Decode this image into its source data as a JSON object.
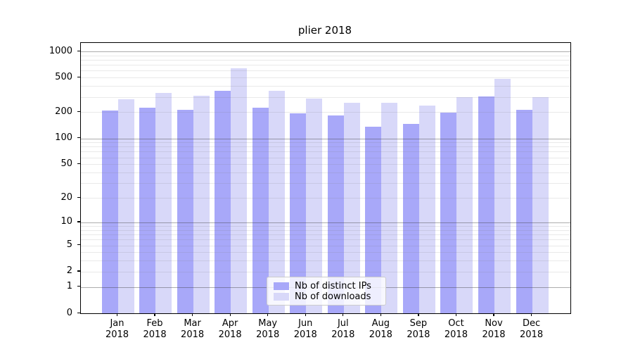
{
  "chart_data": {
    "type": "bar",
    "title": "plier 2018",
    "year_label": "2018",
    "categories": [
      "Jan",
      "Feb",
      "Mar",
      "Apr",
      "May",
      "Jun",
      "Jul",
      "Aug",
      "Sep",
      "Oct",
      "Nov",
      "Dec"
    ],
    "series": [
      {
        "name": "Nb of distinct IPs",
        "color": "#a8a8f9",
        "values": [
          208,
          224,
          215,
          352,
          227,
          193,
          183,
          135,
          148,
          197,
          306,
          214
        ]
      },
      {
        "name": "Nb of downloads",
        "color": "#d8d8f9",
        "values": [
          284,
          331,
          311,
          642,
          356,
          289,
          255,
          258,
          238,
          297,
          480,
          296
        ]
      }
    ],
    "y_axis": {
      "scale": "log1p",
      "tick_labels": [
        "0",
        "1",
        "2",
        "5",
        "10",
        "20",
        "50",
        "100",
        "200",
        "500",
        "1000"
      ],
      "top_value": 1000
    },
    "legend_position": "lower center",
    "grid": true
  }
}
